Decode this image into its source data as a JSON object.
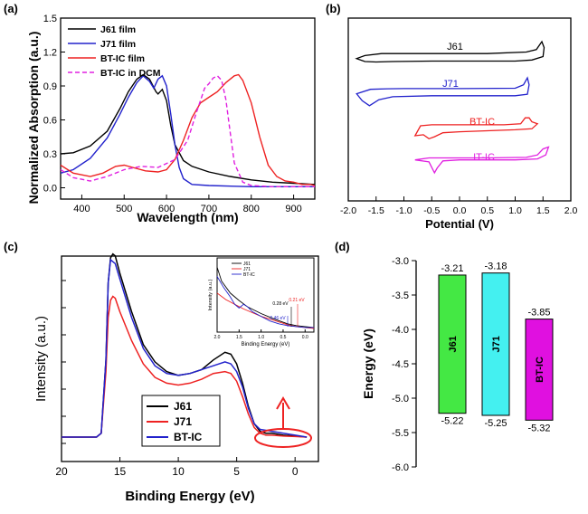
{
  "colors": {
    "black": "#000000",
    "blue": "#2222cc",
    "red": "#ee2222",
    "magenta": "#e020e0",
    "green": "#44e844",
    "cyan": "#44f0f0",
    "bar_magenta": "#e010e0"
  },
  "panel_labels": [
    "(a)",
    "(b)",
    "(c)",
    "(d)"
  ],
  "chart_data": [
    {
      "id": "a",
      "type": "line",
      "xlabel": "Wavelength (nm)",
      "ylabel": "Normalized Absorption (a.u.)",
      "xlim": [
        350,
        950
      ],
      "ylim": [
        -0.1,
        1.5
      ],
      "xticks": [
        "400",
        "500",
        "600",
        "700",
        "800",
        "900"
      ],
      "xtick_values": [
        400,
        500,
        600,
        700,
        800,
        900
      ],
      "yticks": [
        "0.0",
        "0.3",
        "0.6",
        "0.9",
        "1.2",
        "1.5"
      ],
      "ytick_values": [
        0.0,
        0.3,
        0.6,
        0.9,
        1.2,
        1.5
      ],
      "legend": [
        "J61 film",
        "J71 film",
        "BT-IC film",
        "BT-IC in DCM"
      ],
      "series": [
        {
          "name": "J61 film",
          "color": "black",
          "dash": false,
          "x": [
            350,
            380,
            420,
            460,
            490,
            510,
            530,
            545,
            560,
            575,
            580,
            590,
            600,
            610,
            620,
            640,
            660,
            700,
            750,
            800,
            850,
            900,
            950
          ],
          "y": [
            0.3,
            0.31,
            0.37,
            0.5,
            0.7,
            0.85,
            0.96,
            1.0,
            0.96,
            0.85,
            0.83,
            0.87,
            0.77,
            0.55,
            0.38,
            0.24,
            0.19,
            0.14,
            0.1,
            0.07,
            0.05,
            0.04,
            0.03
          ]
        },
        {
          "name": "J71 film",
          "color": "blue",
          "dash": false,
          "x": [
            350,
            380,
            420,
            460,
            490,
            510,
            530,
            545,
            560,
            570,
            580,
            590,
            600,
            610,
            620,
            630,
            640,
            660,
            700,
            800,
            950
          ],
          "y": [
            0.13,
            0.16,
            0.26,
            0.44,
            0.65,
            0.8,
            0.93,
            0.99,
            0.94,
            0.88,
            0.96,
            0.99,
            0.9,
            0.65,
            0.38,
            0.18,
            0.08,
            0.03,
            0.02,
            0.01,
            0.01
          ]
        },
        {
          "name": "BT-IC film",
          "color": "red",
          "dash": false,
          "x": [
            350,
            380,
            420,
            450,
            480,
            500,
            520,
            550,
            580,
            600,
            620,
            640,
            660,
            680,
            700,
            720,
            740,
            760,
            770,
            780,
            800,
            820,
            840,
            860,
            880,
            900,
            920,
            940,
            950
          ],
          "y": [
            0.2,
            0.13,
            0.1,
            0.13,
            0.19,
            0.2,
            0.18,
            0.15,
            0.14,
            0.16,
            0.25,
            0.42,
            0.62,
            0.75,
            0.8,
            0.85,
            0.93,
            0.99,
            1.0,
            0.95,
            0.75,
            0.45,
            0.2,
            0.1,
            0.06,
            0.05,
            0.03,
            0.03,
            0.02
          ]
        },
        {
          "name": "BT-IC in DCM",
          "color": "magenta",
          "dash": true,
          "x": [
            350,
            380,
            420,
            460,
            500,
            540,
            580,
            620,
            650,
            670,
            690,
            700,
            710,
            720,
            730,
            740,
            750,
            760,
            780,
            800,
            850,
            950
          ],
          "y": [
            0.16,
            0.09,
            0.06,
            0.1,
            0.16,
            0.19,
            0.18,
            0.25,
            0.42,
            0.66,
            0.88,
            0.92,
            0.97,
            0.99,
            0.95,
            0.78,
            0.5,
            0.22,
            0.05,
            0.02,
            0.01,
            0.01
          ]
        }
      ]
    },
    {
      "id": "b",
      "type": "line",
      "xlabel": "Potential (V)",
      "xlim": [
        -2.0,
        2.0
      ],
      "xticks": [
        "-2.0",
        "-1.5",
        "-1.0",
        "-0.5",
        "0.0",
        "0.5",
        "1.0",
        "1.5",
        "2.0"
      ],
      "xtick_values": [
        -2.0,
        -1.5,
        -1.0,
        -0.5,
        0.0,
        0.5,
        1.0,
        1.5,
        2.0
      ],
      "labels": [
        {
          "text": "J61",
          "color": "black"
        },
        {
          "text": "J71",
          "color": "blue"
        },
        {
          "text": "BT-IC",
          "color": "red"
        },
        {
          "text": "IT-IC",
          "color": "magenta"
        }
      ],
      "series": [
        {
          "name": "J61",
          "color": "black",
          "x": [
            -1.85,
            -1.7,
            -1.4,
            -1.2,
            -0.5,
            0.5,
            1.2,
            1.38,
            1.48,
            1.52,
            1.5,
            1.3,
            1.0,
            0.5,
            -0.5,
            -1.2,
            -1.5,
            -1.7,
            -1.85
          ],
          "y": [
            0.3,
            0.6,
            0.8,
            0.8,
            0.8,
            0.8,
            0.95,
            1.2,
            2.0,
            1.4,
            0.5,
            0.15,
            0.05,
            0.05,
            0.05,
            0.0,
            -0.05,
            0.0,
            0.3
          ]
        },
        {
          "name": "J71",
          "color": "blue",
          "x": [
            -1.85,
            -1.6,
            -1.3,
            -1.0,
            0.0,
            1.0,
            1.15,
            1.22,
            1.25,
            1.22,
            1.0,
            0.5,
            -0.5,
            -1.2,
            -1.45,
            -1.62,
            -1.75,
            -1.85
          ],
          "y": [
            0.4,
            0.85,
            0.9,
            0.92,
            0.92,
            0.95,
            1.3,
            2.0,
            1.3,
            0.35,
            0.2,
            0.2,
            0.2,
            0.1,
            -0.2,
            -0.8,
            -0.3,
            0.4
          ]
        },
        {
          "name": "BT-IC",
          "color": "red",
          "x": [
            -0.8,
            -0.7,
            -0.5,
            0.0,
            0.8,
            1.1,
            1.18,
            1.25,
            1.3,
            1.4,
            1.3,
            1.0,
            0.5,
            0.0,
            -0.3,
            -0.45,
            -0.55,
            -0.65,
            -0.8
          ],
          "y": [
            0.0,
            1.0,
            1.1,
            1.1,
            1.1,
            1.2,
            1.8,
            1.8,
            1.4,
            1.2,
            0.7,
            0.6,
            0.5,
            0.4,
            0.3,
            -0.1,
            -0.3,
            0.1,
            0.0
          ]
        },
        {
          "name": "IT-IC",
          "color": "magenta",
          "x": [
            -0.8,
            -0.55,
            -0.3,
            0.5,
            1.2,
            1.4,
            1.5,
            1.55,
            1.6,
            1.55,
            1.4,
            1.0,
            0.0,
            -0.3,
            -0.4,
            -0.45,
            -0.55,
            -0.8
          ],
          "y": [
            0.3,
            0.5,
            0.5,
            0.5,
            0.55,
            0.8,
            1.4,
            1.5,
            1.6,
            0.8,
            0.4,
            0.3,
            0.3,
            0.2,
            -0.5,
            -1.0,
            0.1,
            0.3
          ]
        }
      ]
    },
    {
      "id": "c",
      "type": "line",
      "xlabel": "Binding Energy (eV)",
      "ylabel": "Intensity (a.u.)",
      "xlim": [
        20,
        -2
      ],
      "ylim": [
        0,
        1.0
      ],
      "xticks": [
        "20",
        "15",
        "10",
        "5",
        "0"
      ],
      "xtick_values": [
        20,
        15,
        10,
        5,
        0
      ],
      "legend": [
        "J61",
        "J71",
        "BT-IC"
      ],
      "series": [
        {
          "name": "J61",
          "color": "black",
          "x": [
            20,
            17,
            16.6,
            16.2,
            16.0,
            15.8,
            15.6,
            15.4,
            15.0,
            14.0,
            13.0,
            12.0,
            11.0,
            10.0,
            9.0,
            8.0,
            7.0,
            6.0,
            5.5,
            5.0,
            4.5,
            4.0,
            3.5,
            3.0,
            2.5,
            2.0,
            1.0,
            0.0,
            -1.0
          ],
          "y": [
            0,
            0,
            0.02,
            0.4,
            0.8,
            0.93,
            0.95,
            0.94,
            0.85,
            0.65,
            0.48,
            0.39,
            0.34,
            0.32,
            0.33,
            0.35,
            0.4,
            0.44,
            0.43,
            0.38,
            0.28,
            0.16,
            0.07,
            0.03,
            0.02,
            0.02,
            0.01,
            0.005,
            0.0
          ]
        },
        {
          "name": "J71",
          "color": "red",
          "x": [
            20,
            17,
            16.6,
            16.2,
            16.0,
            15.8,
            15.6,
            15.4,
            15.0,
            14.0,
            13.0,
            12.0,
            11.0,
            10.0,
            9.0,
            8.0,
            7.0,
            6.0,
            5.5,
            5.0,
            4.5,
            4.0,
            3.5,
            3.0,
            2.5,
            2.0,
            1.0,
            0.0,
            -1.0
          ],
          "y": [
            0,
            0,
            0.02,
            0.34,
            0.62,
            0.71,
            0.73,
            0.72,
            0.65,
            0.5,
            0.38,
            0.31,
            0.28,
            0.27,
            0.28,
            0.3,
            0.33,
            0.34,
            0.33,
            0.29,
            0.21,
            0.12,
            0.05,
            0.02,
            0.01,
            0.01,
            0.005,
            0.003,
            0.0
          ]
        },
        {
          "name": "BT-IC",
          "color": "blue",
          "x": [
            20,
            17,
            16.6,
            16.2,
            16.0,
            15.8,
            15.6,
            15.4,
            15.0,
            14.0,
            13.0,
            12.0,
            11.0,
            10.0,
            9.0,
            8.0,
            7.0,
            6.0,
            5.5,
            5.0,
            4.5,
            4.0,
            3.5,
            3.0,
            2.5,
            2.0,
            1.0,
            0.0,
            -1.0
          ],
          "y": [
            0,
            0,
            0.02,
            0.4,
            0.8,
            0.92,
            0.91,
            0.9,
            0.82,
            0.62,
            0.46,
            0.37,
            0.33,
            0.32,
            0.33,
            0.35,
            0.37,
            0.39,
            0.38,
            0.34,
            0.26,
            0.15,
            0.07,
            0.04,
            0.035,
            0.03,
            0.02,
            0.01,
            0.0
          ]
        }
      ],
      "inset": {
        "xlabel": "Binding Energy (eV)",
        "ylabel": "Intensity (a.u.)",
        "xticks": [
          "2.0",
          "1.5",
          "1.0",
          "0.5",
          "0.0"
        ],
        "xtick_values": [
          2.0,
          1.5,
          1.0,
          0.5,
          0.0
        ],
        "legend": [
          "J61",
          "J71",
          "BT-IC"
        ],
        "annotations": [
          {
            "text": "0.28 eV",
            "color": "black"
          },
          {
            "text": "0.21 eV",
            "color": "red"
          },
          {
            "text": "0.46 eV",
            "color": "blue"
          }
        ],
        "series": [
          {
            "name": "J61",
            "color": "black",
            "x": [
              2.0,
              1.9,
              1.7,
              1.5,
              1.3,
              1.0,
              0.7,
              0.4,
              0.2,
              0.0,
              -0.2
            ],
            "y": [
              0.8,
              0.65,
              0.52,
              0.44,
              0.37,
              0.3,
              0.24,
              0.19,
              0.17,
              0.16,
              0.15
            ]
          },
          {
            "name": "J71",
            "color": "red",
            "x": [
              2.0,
              1.8,
              1.6,
              1.4,
              1.2,
              1.0,
              0.8,
              0.6,
              0.4,
              0.2,
              0.0,
              -0.2
            ],
            "y": [
              0.52,
              0.45,
              0.4,
              0.35,
              0.31,
              0.27,
              0.24,
              0.21,
              0.18,
              0.16,
              0.15,
              0.14
            ]
          },
          {
            "name": "BT-IC",
            "color": "blue",
            "x": [
              2.0,
              1.85,
              1.7,
              1.6,
              1.5,
              1.4,
              1.3,
              1.2,
              1.0,
              0.8,
              0.6,
              0.4,
              0.2,
              0.0,
              -0.2
            ],
            "y": [
              0.7,
              0.58,
              0.48,
              0.4,
              0.36,
              0.4,
              0.37,
              0.32,
              0.27,
              0.22,
              0.19,
              0.17,
              0.16,
              0.15,
              0.15
            ]
          }
        ]
      }
    },
    {
      "id": "d",
      "type": "bar",
      "ylabel": "Energy (eV)",
      "ylim": [
        -6.0,
        -3.0
      ],
      "yticks": [
        "-3.0",
        "-3.5",
        "-4.0",
        "-4.5",
        "-5.0",
        "-5.5",
        "-6.0"
      ],
      "ytick_values": [
        -3.0,
        -3.5,
        -4.0,
        -4.5,
        -5.0,
        -5.5,
        -6.0
      ],
      "bars": [
        {
          "name": "J61",
          "lumo": -3.21,
          "homo": -5.22,
          "lumo_label": "-3.21",
          "homo_label": "-5.22",
          "color": "green"
        },
        {
          "name": "J71",
          "lumo": -3.18,
          "homo": -5.25,
          "lumo_label": "-3.18",
          "homo_label": "-5.25",
          "color": "cyan"
        },
        {
          "name": "BT-IC",
          "lumo": -3.85,
          "homo": -5.32,
          "lumo_label": "-3.85",
          "homo_label": "-5.32",
          "color": "bar_magenta"
        }
      ]
    }
  ]
}
